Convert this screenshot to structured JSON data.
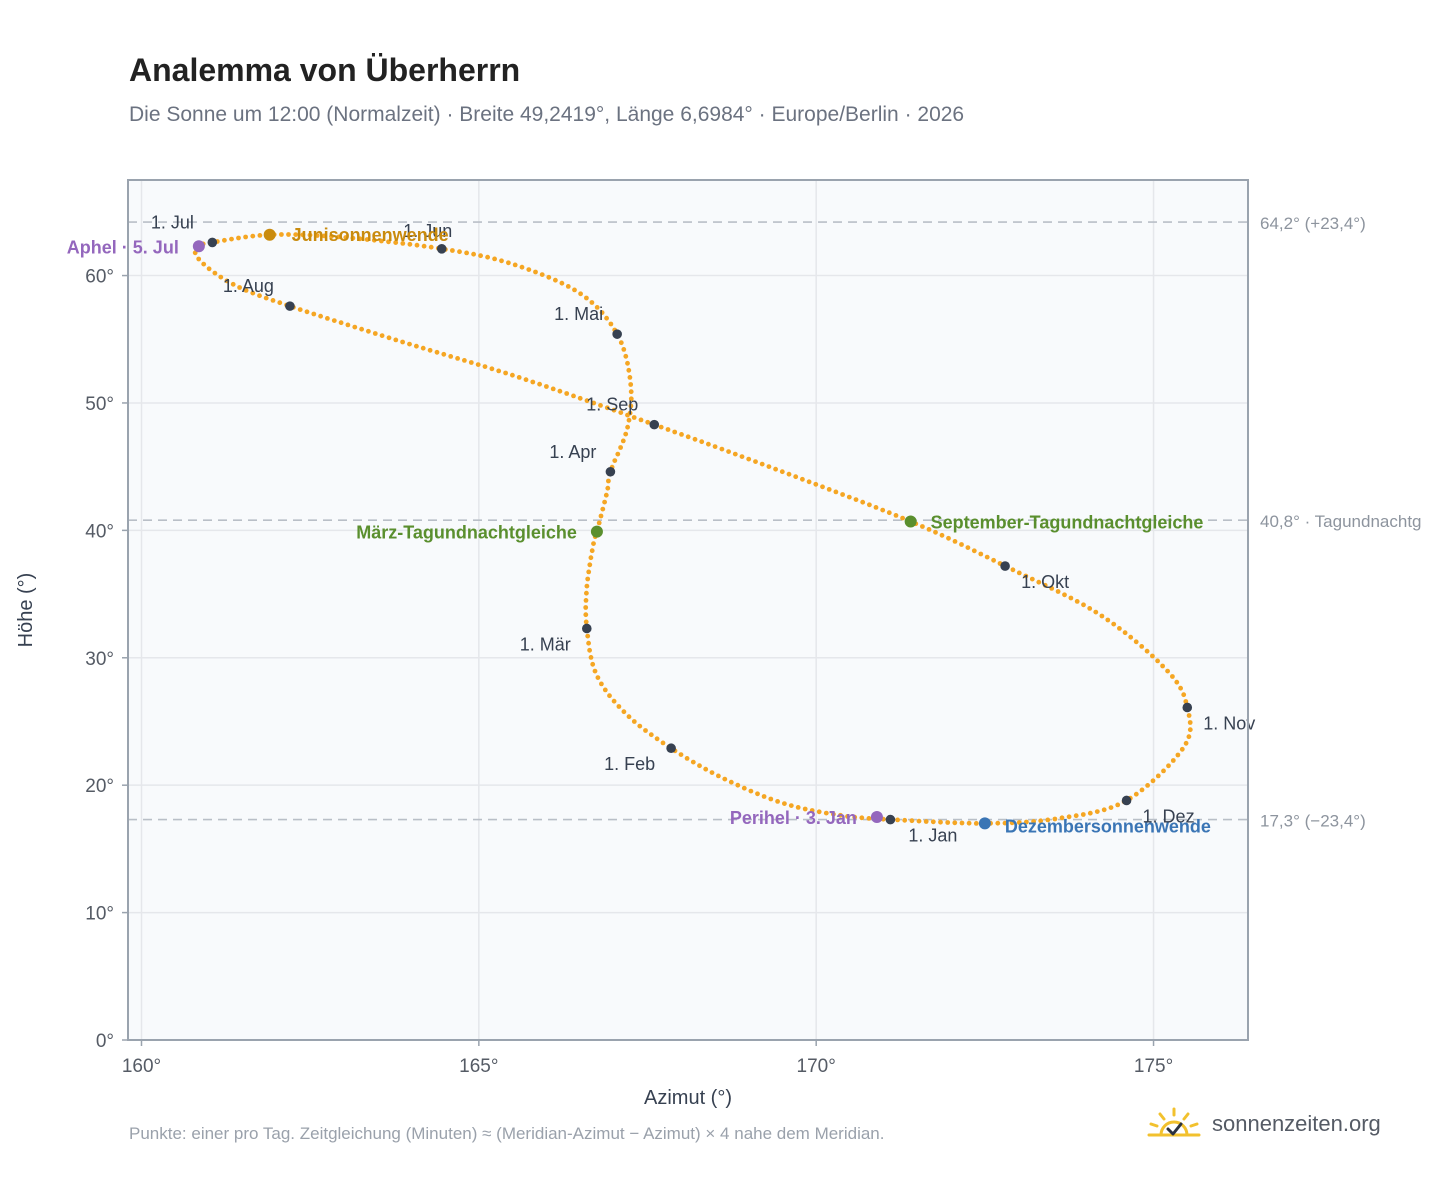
{
  "title": "Analemma von Überherrn",
  "subtitle": "Die Sonne um 12:00 (Normalzeit) · Breite 49,2419°, Länge 6,6984° · Europe/Berlin · 2026",
  "footnote": "Punkte: einer pro Tag. Zeitgleichung (Minuten) ≈ (Meridian-Azimut − Azimut) × 4 nahe dem Meridian.",
  "brand": {
    "name": "sonnenzeiten.org",
    "icon": "sun-check-icon"
  },
  "colors": {
    "curve": "#f5a623",
    "month_marker": "#374151",
    "solstice_june": "#c98b0e",
    "equinox": "#5a8f2e",
    "solstice_december": "#3a75b5",
    "apsis": "#9467bd",
    "reference_line": "#b9bfc7",
    "plot_background": "#f8fafc",
    "grid": "#e5e7eb",
    "axis_frame": "#9aa3ae"
  },
  "chart_data": {
    "type": "scatter",
    "xlabel": "Azimut (°)",
    "ylabel": "Höhe (°)",
    "xlim": [
      159.8,
      176.4
    ],
    "ylim": [
      0,
      67.5
    ],
    "x_ticks": [
      160,
      165,
      170,
      175
    ],
    "x_tick_labels": [
      "160°",
      "165°",
      "170°",
      "175°"
    ],
    "y_ticks": [
      0,
      10,
      20,
      30,
      40,
      50,
      60
    ],
    "y_tick_labels": [
      "0°",
      "10°",
      "20°",
      "30°",
      "40°",
      "50°",
      "60°"
    ],
    "grid": true,
    "path": [
      {
        "az": 171.1,
        "alt": 17.3
      },
      {
        "az": 170.4,
        "alt": 17.6
      },
      {
        "az": 169.5,
        "alt": 18.6
      },
      {
        "az": 168.6,
        "alt": 20.6
      },
      {
        "az": 167.85,
        "alt": 22.9
      },
      {
        "az": 167.2,
        "alt": 25.5
      },
      {
        "az": 166.75,
        "alt": 28.6
      },
      {
        "az": 166.6,
        "alt": 32.3
      },
      {
        "az": 166.6,
        "alt": 35.5
      },
      {
        "az": 166.7,
        "alt": 39.0
      },
      {
        "az": 166.75,
        "alt": 39.9
      },
      {
        "az": 166.9,
        "alt": 43.0
      },
      {
        "az": 166.95,
        "alt": 44.6
      },
      {
        "az": 167.2,
        "alt": 48.0
      },
      {
        "az": 167.25,
        "alt": 51.5
      },
      {
        "az": 167.05,
        "alt": 55.4
      },
      {
        "az": 166.5,
        "alt": 58.6
      },
      {
        "az": 165.5,
        "alt": 60.9
      },
      {
        "az": 164.45,
        "alt": 62.1
      },
      {
        "az": 163.0,
        "alt": 63.0
      },
      {
        "az": 161.9,
        "alt": 63.2
      },
      {
        "az": 161.05,
        "alt": 62.6
      },
      {
        "az": 160.8,
        "alt": 62.2
      },
      {
        "az": 160.9,
        "alt": 61.0
      },
      {
        "az": 161.4,
        "alt": 59.2
      },
      {
        "az": 162.2,
        "alt": 57.6
      },
      {
        "az": 163.8,
        "alt": 54.9
      },
      {
        "az": 165.6,
        "alt": 52.0
      },
      {
        "az": 167.6,
        "alt": 48.3
      },
      {
        "az": 169.3,
        "alt": 45.0
      },
      {
        "az": 171.4,
        "alt": 40.7
      },
      {
        "az": 172.8,
        "alt": 37.2
      },
      {
        "az": 174.2,
        "alt": 33.4
      },
      {
        "az": 175.2,
        "alt": 29.0
      },
      {
        "az": 175.5,
        "alt": 26.1
      },
      {
        "az": 175.45,
        "alt": 23.0
      },
      {
        "az": 174.6,
        "alt": 18.8
      },
      {
        "az": 173.6,
        "alt": 17.4
      },
      {
        "az": 172.5,
        "alt": 17.0
      },
      {
        "az": 171.1,
        "alt": 17.3
      }
    ],
    "month_markers": [
      {
        "label": "1. Jan",
        "az": 171.1,
        "alt": 17.3
      },
      {
        "label": "1. Feb",
        "az": 167.85,
        "alt": 22.9
      },
      {
        "label": "1. Mär",
        "az": 166.6,
        "alt": 32.3
      },
      {
        "label": "1. Apr",
        "az": 166.95,
        "alt": 44.6
      },
      {
        "label": "1. Mai",
        "az": 167.05,
        "alt": 55.4
      },
      {
        "label": "1. Jun",
        "az": 164.45,
        "alt": 62.1
      },
      {
        "label": "1. Jul",
        "az": 161.05,
        "alt": 62.6
      },
      {
        "label": "1. Aug",
        "az": 162.2,
        "alt": 57.6
      },
      {
        "label": "1. Sep",
        "az": 167.6,
        "alt": 48.3
      },
      {
        "label": "1. Okt",
        "az": 172.8,
        "alt": 37.2
      },
      {
        "label": "1. Nov",
        "az": 175.5,
        "alt": 26.1
      },
      {
        "label": "1. Dez",
        "az": 174.6,
        "alt": 18.8
      }
    ],
    "events": [
      {
        "label": "Junisonnenwende",
        "az": 161.9,
        "alt": 63.2,
        "color": "#c98b0e"
      },
      {
        "label": "März-Tagundnachtgleiche",
        "az": 166.75,
        "alt": 39.9,
        "color": "#5a8f2e"
      },
      {
        "label": "September-Tagundnachtgleiche",
        "az": 171.4,
        "alt": 40.7,
        "color": "#5a8f2e"
      },
      {
        "label": "Dezembersonnenwende",
        "az": 172.5,
        "alt": 17.0,
        "color": "#3a75b5"
      },
      {
        "label": "Aphel · 5. Jul",
        "az": 160.85,
        "alt": 62.3,
        "color": "#9467bd"
      },
      {
        "label": "Perihel · 3. Jan",
        "az": 170.9,
        "alt": 17.5,
        "color": "#9467bd"
      }
    ],
    "reference_lines": [
      {
        "alt": 64.2,
        "label": "64,2° (+23,4°)"
      },
      {
        "alt": 40.8,
        "label": "40,8° · Tagundnachtg"
      },
      {
        "alt": 17.3,
        "label": "17,3° (−23,4°)"
      }
    ]
  }
}
